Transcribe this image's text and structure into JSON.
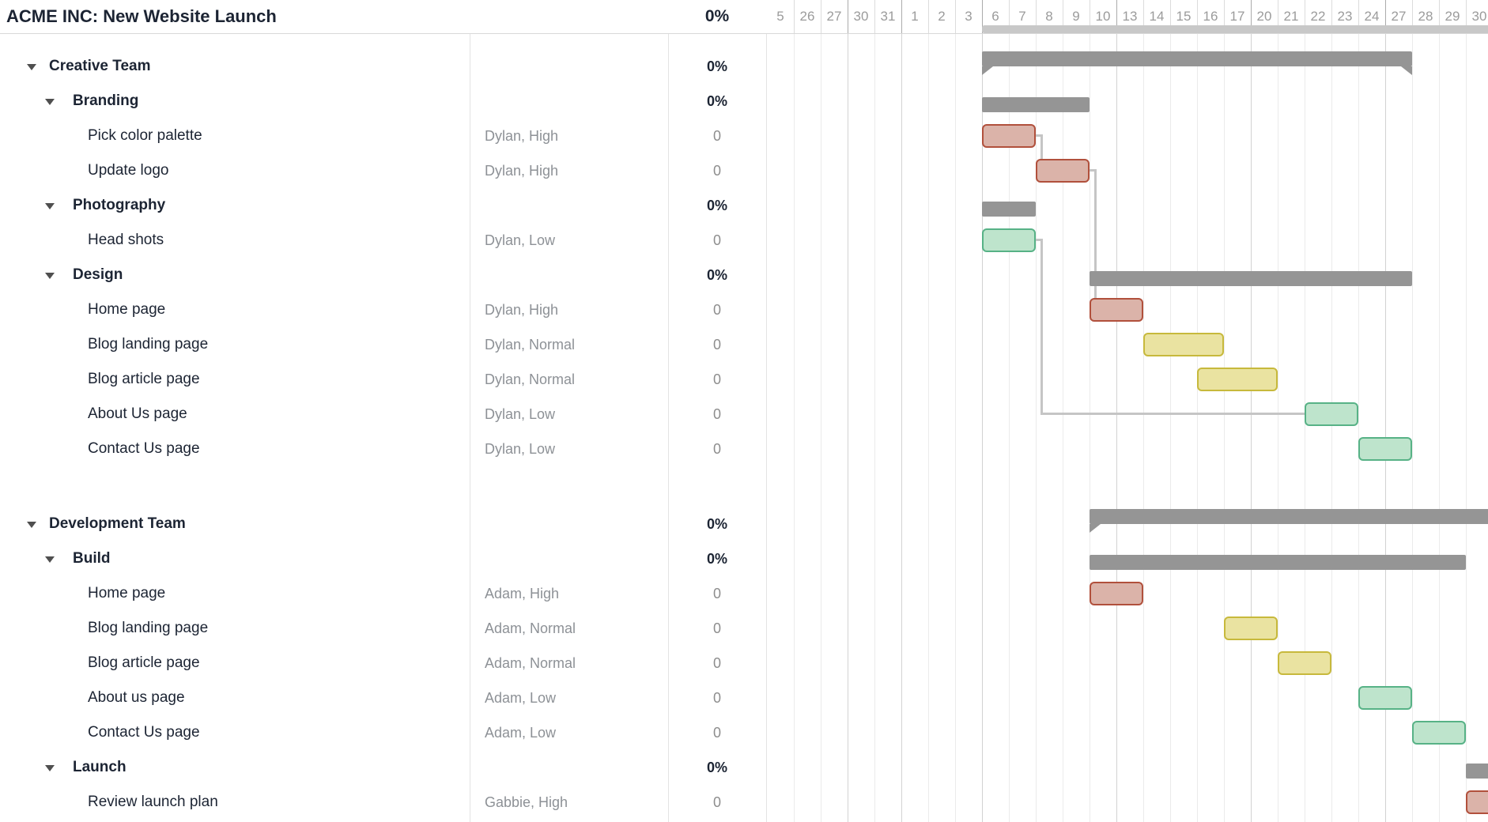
{
  "title": "ACME INC: New Website Launch",
  "project": {
    "percent": "0%"
  },
  "timeline": {
    "columns": [
      {
        "label": "5"
      },
      {
        "label": "26"
      },
      {
        "label": "27"
      },
      {
        "label": "30",
        "week_start": true
      },
      {
        "label": "31"
      },
      {
        "label": "1",
        "week_start": true
      },
      {
        "label": "2"
      },
      {
        "label": "3"
      },
      {
        "label": "6",
        "week_start": true
      },
      {
        "label": "7"
      },
      {
        "label": "8"
      },
      {
        "label": "9"
      },
      {
        "label": "10"
      },
      {
        "label": "13",
        "week_start": true
      },
      {
        "label": "14"
      },
      {
        "label": "15"
      },
      {
        "label": "16"
      },
      {
        "label": "17"
      },
      {
        "label": "20",
        "week_start": true
      },
      {
        "label": "21"
      },
      {
        "label": "22"
      },
      {
        "label": "23"
      },
      {
        "label": "24"
      },
      {
        "label": "27",
        "week_start": true
      },
      {
        "label": "28"
      },
      {
        "label": "29"
      },
      {
        "label": "30"
      }
    ],
    "header_strip_start_col": 8
  },
  "colors": {
    "summary_gray": "#959595",
    "connector": "#c5c5c5",
    "red": {
      "fill": "#dbb3a9",
      "border": "#b1503c"
    },
    "yellow": {
      "fill": "#eae3a1",
      "border": "#c7b93c"
    },
    "green": {
      "fill": "#bee4cc",
      "border": "#57b286"
    }
  },
  "rows": [
    {
      "kind": "group",
      "name": "Creative Team",
      "percent": "0%",
      "bar": {
        "style": "group",
        "start": 8,
        "end": 23,
        "cap_left": true,
        "cap_right": true
      }
    },
    {
      "kind": "subgroup",
      "name": "Branding",
      "percent": "0%",
      "bar": {
        "style": "summary",
        "start": 8,
        "end": 11
      }
    },
    {
      "kind": "task",
      "name": "Pick color palette",
      "assignee": "Dylan, High",
      "percent": "0",
      "bar": {
        "style": "task",
        "color": "red",
        "start": 8,
        "end": 9
      }
    },
    {
      "kind": "task",
      "name": "Update logo",
      "assignee": "Dylan, High",
      "percent": "0",
      "bar": {
        "style": "task",
        "color": "red",
        "start": 10,
        "end": 11
      }
    },
    {
      "kind": "subgroup",
      "name": "Photography",
      "percent": "0%",
      "bar": {
        "style": "summary",
        "start": 8,
        "end": 9
      }
    },
    {
      "kind": "task",
      "name": "Head shots",
      "assignee": "Dylan, Low",
      "percent": "0",
      "bar": {
        "style": "task",
        "color": "green",
        "start": 8,
        "end": 9
      }
    },
    {
      "kind": "subgroup",
      "name": "Design",
      "percent": "0%",
      "bar": {
        "style": "summary",
        "start": 12,
        "end": 23
      }
    },
    {
      "kind": "task",
      "name": "Home page",
      "assignee": "Dylan, High",
      "percent": "0",
      "bar": {
        "style": "task",
        "color": "red",
        "start": 12,
        "end": 13
      }
    },
    {
      "kind": "task",
      "name": "Blog landing page",
      "assignee": "Dylan, Normal",
      "percent": "0",
      "bar": {
        "style": "task",
        "color": "yellow",
        "start": 14,
        "end": 16
      }
    },
    {
      "kind": "task",
      "name": "Blog article page",
      "assignee": "Dylan, Normal",
      "percent": "0",
      "bar": {
        "style": "task",
        "color": "yellow",
        "start": 16,
        "end": 18
      }
    },
    {
      "kind": "task",
      "name": "About Us page",
      "assignee": "Dylan, Low",
      "percent": "0",
      "bar": {
        "style": "task",
        "color": "green",
        "start": 20,
        "end": 21
      }
    },
    {
      "kind": "task",
      "name": "Contact Us page",
      "assignee": "Dylan, Low",
      "percent": "0",
      "bar": {
        "style": "task",
        "color": "green",
        "start": 22,
        "end": 23
      }
    },
    {
      "kind": "spacer"
    },
    {
      "kind": "group",
      "name": "Development Team",
      "percent": "0%",
      "bar": {
        "style": "group",
        "start": 12,
        "end": 26,
        "cap_left": true,
        "cap_right": false
      }
    },
    {
      "kind": "subgroup",
      "name": "Build",
      "percent": "0%",
      "bar": {
        "style": "summary",
        "start": 12,
        "end": 25
      }
    },
    {
      "kind": "task",
      "name": "Home page",
      "assignee": "Adam, High",
      "percent": "0",
      "bar": {
        "style": "task",
        "color": "red",
        "start": 12,
        "end": 13
      }
    },
    {
      "kind": "task",
      "name": "Blog landing page",
      "assignee": "Adam, Normal",
      "percent": "0",
      "bar": {
        "style": "task",
        "color": "yellow",
        "start": 17,
        "end": 18
      }
    },
    {
      "kind": "task",
      "name": "Blog article page",
      "assignee": "Adam, Normal",
      "percent": "0",
      "bar": {
        "style": "task",
        "color": "yellow",
        "start": 19,
        "end": 20
      }
    },
    {
      "kind": "task",
      "name": "About us page",
      "assignee": "Adam, Low",
      "percent": "0",
      "bar": {
        "style": "task",
        "color": "green",
        "start": 22,
        "end": 23
      }
    },
    {
      "kind": "task",
      "name": "Contact Us page",
      "assignee": "Adam, Low",
      "percent": "0",
      "bar": {
        "style": "task",
        "color": "green",
        "start": 24,
        "end": 25
      }
    },
    {
      "kind": "subgroup",
      "name": "Launch",
      "percent": "0%",
      "bar": {
        "style": "summary",
        "start": 26,
        "end": 26
      }
    },
    {
      "kind": "task",
      "name": "Review launch plan",
      "assignee": "Gabbie, High",
      "percent": "0",
      "bar": {
        "style": "task",
        "color": "red",
        "start": 26,
        "end": 26
      }
    }
  ],
  "dependencies": [
    {
      "from": 2,
      "to": 3,
      "style": "drop"
    },
    {
      "from": 3,
      "to": 7,
      "style": "drop"
    },
    {
      "from": 5,
      "to": 10,
      "style": "elbow"
    }
  ]
}
